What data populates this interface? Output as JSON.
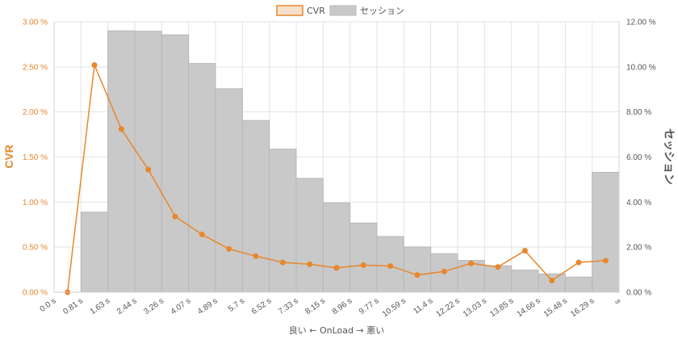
{
  "colors": {
    "cvr": "#e8872c",
    "session_fill": "#c9c9c9",
    "session_stroke": "#b8b8b8",
    "grid": "#e3e3e3",
    "text": "#555555"
  },
  "chart_data": {
    "type": "bar",
    "legend_placement": "top-center",
    "grid": true,
    "x_ticks": [
      "0.0 s",
      "0.81 s",
      "1.63 s",
      "2.44 s",
      "3.26 s",
      "4.07 s",
      "4.89 s",
      "5.7 s",
      "6.52 s",
      "7.33 s",
      "8.15 s",
      "8.96 s",
      "9.77 s",
      "10.59 s",
      "11.4 s",
      "12.22 s",
      "13.03 s",
      "13.85 s",
      "14.66 s",
      "15.48 s",
      "16.29 s",
      "∞"
    ],
    "xlabel": "良い ← OnLoad → 悪い",
    "ylabel_left": "CVR",
    "ylabel_right": "セッション",
    "ylim_left": [
      0,
      3.0
    ],
    "ylim_right": [
      0,
      12.0
    ],
    "y_ticks_left": [
      "0.00 %",
      "0.50 %",
      "1.00 %",
      "1.50 %",
      "2.00 %",
      "2.50 %",
      "3.00 %"
    ],
    "y_ticks_right": [
      "0.00 %",
      "2.00 %",
      "4.00 %",
      "6.00 %",
      "8.00 %",
      "10.00 %",
      "12.00 %"
    ],
    "series": [
      {
        "name": "CVR",
        "type": "line",
        "axis": "left",
        "values": [
          0.0,
          2.52,
          1.81,
          1.36,
          0.84,
          0.64,
          0.48,
          0.4,
          0.33,
          0.31,
          0.27,
          0.3,
          0.29,
          0.19,
          0.23,
          0.32,
          0.28,
          0.46,
          0.13,
          0.33,
          0.35
        ]
      },
      {
        "name": "セッション",
        "type": "bar",
        "axis": "right",
        "values": [
          0.0,
          3.55,
          11.6,
          11.58,
          11.42,
          10.15,
          9.03,
          7.62,
          6.35,
          5.05,
          3.96,
          3.07,
          2.47,
          2.01,
          1.71,
          1.41,
          1.17,
          0.98,
          0.81,
          0.67,
          5.32
        ]
      }
    ]
  }
}
